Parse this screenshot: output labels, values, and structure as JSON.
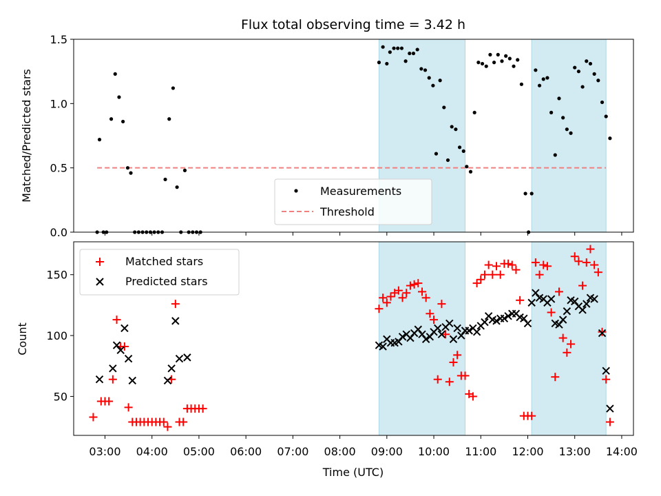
{
  "chart_data": [
    {
      "type": "scatter",
      "title": "Flux total observing time = 3.42 h",
      "xlabel": "",
      "ylabel": "Matched/Predicted stars",
      "ylim": [
        0,
        1.5
      ],
      "yticks": [
        "0.0",
        "0.5",
        "1.0",
        "1.5"
      ],
      "shaded_intervals": [
        [
          "08:50",
          "10:40"
        ],
        [
          "12:05",
          "13:40"
        ]
      ],
      "shade_color": "#add8e6",
      "legend_position": "lower-center",
      "legend": [
        {
          "label": "Measurements",
          "marker": "dot",
          "color": "#000000"
        },
        {
          "label": "Threshold",
          "marker": "dashed-line",
          "color": "#f08080"
        }
      ],
      "threshold": {
        "value": 0.5,
        "x_start": "02:50",
        "x_end": "13:40"
      },
      "series": [
        {
          "name": "Measurements",
          "color": "#000000",
          "points": [
            [
              "02:50",
              0.0
            ],
            [
              "02:53",
              0.72
            ],
            [
              "02:58",
              0.0
            ],
            [
              "03:02",
              0.0
            ],
            [
              "03:08",
              0.88
            ],
            [
              "03:13",
              1.23
            ],
            [
              "03:18",
              1.05
            ],
            [
              "03:23",
              0.86
            ],
            [
              "03:29",
              0.5
            ],
            [
              "03:33",
              0.46
            ],
            [
              "03:38",
              0.0
            ],
            [
              "03:43",
              0.0
            ],
            [
              "03:48",
              0.0
            ],
            [
              "03:53",
              0.0
            ],
            [
              "03:58",
              0.0
            ],
            [
              "04:03",
              0.0
            ],
            [
              "04:08",
              0.0
            ],
            [
              "04:13",
              0.0
            ],
            [
              "04:17",
              0.41
            ],
            [
              "04:22",
              0.88
            ],
            [
              "04:27",
              1.12
            ],
            [
              "04:32",
              0.35
            ],
            [
              "04:37",
              0.0
            ],
            [
              "04:42",
              0.48
            ],
            [
              "04:47",
              0.0
            ],
            [
              "04:52",
              0.0
            ],
            [
              "04:57",
              0.0
            ],
            [
              "05:02",
              0.0
            ],
            [
              "08:50",
              1.32
            ],
            [
              "08:55",
              1.44
            ],
            [
              "09:00",
              1.31
            ],
            [
              "09:04",
              1.4
            ],
            [
              "09:09",
              1.43
            ],
            [
              "09:14",
              1.43
            ],
            [
              "09:19",
              1.43
            ],
            [
              "09:24",
              1.33
            ],
            [
              "09:29",
              1.39
            ],
            [
              "09:34",
              1.39
            ],
            [
              "09:39",
              1.42
            ],
            [
              "09:44",
              1.27
            ],
            [
              "09:49",
              1.26
            ],
            [
              "09:54",
              1.2
            ],
            [
              "09:59",
              1.14
            ],
            [
              "10:03",
              0.61
            ],
            [
              "10:08",
              1.18
            ],
            [
              "10:13",
              0.97
            ],
            [
              "10:18",
              0.56
            ],
            [
              "10:23",
              0.82
            ],
            [
              "10:28",
              0.8
            ],
            [
              "10:33",
              0.66
            ],
            [
              "10:38",
              0.63
            ],
            [
              "10:42",
              0.51
            ],
            [
              "10:47",
              0.47
            ],
            [
              "10:52",
              0.93
            ],
            [
              "10:57",
              1.32
            ],
            [
              "11:02",
              1.31
            ],
            [
              "11:07",
              1.29
            ],
            [
              "11:12",
              1.38
            ],
            [
              "11:17",
              1.32
            ],
            [
              "11:22",
              1.38
            ],
            [
              "11:27",
              1.33
            ],
            [
              "11:32",
              1.37
            ],
            [
              "11:37",
              1.35
            ],
            [
              "11:42",
              1.29
            ],
            [
              "11:47",
              1.34
            ],
            [
              "11:52",
              1.15
            ],
            [
              "11:57",
              0.3
            ],
            [
              "12:01",
              0.0
            ],
            [
              "12:05",
              0.3
            ],
            [
              "12:10",
              1.26
            ],
            [
              "12:15",
              1.14
            ],
            [
              "12:20",
              1.19
            ],
            [
              "12:25",
              1.2
            ],
            [
              "12:30",
              0.93
            ],
            [
              "12:35",
              0.6
            ],
            [
              "12:40",
              1.04
            ],
            [
              "12:45",
              0.89
            ],
            [
              "12:50",
              0.8
            ],
            [
              "12:55",
              0.77
            ],
            [
              "13:00",
              1.28
            ],
            [
              "13:05",
              1.25
            ],
            [
              "13:10",
              1.13
            ],
            [
              "13:15",
              1.33
            ],
            [
              "13:20",
              1.31
            ],
            [
              "13:25",
              1.23
            ],
            [
              "13:30",
              1.18
            ],
            [
              "13:35",
              1.01
            ],
            [
              "13:40",
              0.9
            ],
            [
              "13:45",
              0.73
            ]
          ]
        }
      ]
    },
    {
      "type": "scatter",
      "title": "",
      "xlabel": "Time (UTC)",
      "ylabel": "Count",
      "ylim": [
        18,
        177
      ],
      "yticks": [
        "50",
        "100",
        "150"
      ],
      "xticks": [
        "03:00",
        "04:00",
        "05:00",
        "06:00",
        "07:00",
        "08:00",
        "09:00",
        "10:00",
        "11:00",
        "12:00",
        "13:00",
        "14:00"
      ],
      "shaded_intervals": [
        [
          "08:50",
          "10:40"
        ],
        [
          "12:05",
          "13:40"
        ]
      ],
      "shade_color": "#add8e6",
      "legend_position": "top-left",
      "legend": [
        {
          "label": "Matched stars",
          "marker": "plus",
          "color": "#ff0000"
        },
        {
          "label": "Predicted stars",
          "marker": "x",
          "color": "#000000"
        }
      ],
      "series": [
        {
          "name": "Matched stars",
          "color": "#ff0000",
          "marker": "plus",
          "points": [
            [
              "02:45",
              33
            ],
            [
              "02:55",
              46
            ],
            [
              "03:00",
              46
            ],
            [
              "03:05",
              46
            ],
            [
              "03:10",
              64
            ],
            [
              "03:15",
              113
            ],
            [
              "03:20",
              91
            ],
            [
              "03:25",
              91
            ],
            [
              "03:30",
              41
            ],
            [
              "03:35",
              29
            ],
            [
              "03:40",
              29
            ],
            [
              "03:45",
              29
            ],
            [
              "03:50",
              29
            ],
            [
              "03:55",
              29
            ],
            [
              "04:00",
              29
            ],
            [
              "04:05",
              29
            ],
            [
              "04:10",
              29
            ],
            [
              "04:15",
              29
            ],
            [
              "04:20",
              25
            ],
            [
              "04:25",
              64
            ],
            [
              "04:30",
              126
            ],
            [
              "04:35",
              29
            ],
            [
              "04:40",
              29
            ],
            [
              "04:45",
              40
            ],
            [
              "04:50",
              40
            ],
            [
              "04:55",
              40
            ],
            [
              "05:00",
              40
            ],
            [
              "05:05",
              40
            ],
            [
              "08:50",
              122
            ],
            [
              "08:55",
              131
            ],
            [
              "09:00",
              127
            ],
            [
              "09:05",
              132
            ],
            [
              "09:10",
              135
            ],
            [
              "09:15",
              137
            ],
            [
              "09:20",
              131
            ],
            [
              "09:25",
              135
            ],
            [
              "09:30",
              141
            ],
            [
              "09:35",
              142
            ],
            [
              "09:40",
              143
            ],
            [
              "09:45",
              136
            ],
            [
              "09:50",
              131
            ],
            [
              "09:55",
              118
            ],
            [
              "10:00",
              113
            ],
            [
              "10:05",
              64
            ],
            [
              "10:10",
              126
            ],
            [
              "10:15",
              101
            ],
            [
              "10:20",
              62
            ],
            [
              "10:25",
              78
            ],
            [
              "10:30",
              84
            ],
            [
              "10:35",
              67
            ],
            [
              "10:40",
              67
            ],
            [
              "10:45",
              52
            ],
            [
              "10:50",
              50
            ],
            [
              "10:55",
              143
            ],
            [
              "11:00",
              146
            ],
            [
              "11:05",
              150
            ],
            [
              "11:10",
              158
            ],
            [
              "11:15",
              150
            ],
            [
              "11:20",
              157
            ],
            [
              "11:25",
              150
            ],
            [
              "11:30",
              159
            ],
            [
              "11:35",
              159
            ],
            [
              "11:40",
              158
            ],
            [
              "11:45",
              154
            ],
            [
              "11:50",
              129
            ],
            [
              "11:55",
              34
            ],
            [
              "12:00",
              34
            ],
            [
              "12:05",
              34
            ],
            [
              "12:10",
              160
            ],
            [
              "12:15",
              150
            ],
            [
              "12:20",
              158
            ],
            [
              "12:25",
              157
            ],
            [
              "12:30",
              119
            ],
            [
              "12:35",
              66
            ],
            [
              "12:40",
              136
            ],
            [
              "12:45",
              98
            ],
            [
              "12:50",
              86
            ],
            [
              "12:55",
              93
            ],
            [
              "13:00",
              165
            ],
            [
              "13:05",
              161
            ],
            [
              "13:10",
              141
            ],
            [
              "13:15",
              160
            ],
            [
              "13:20",
              171
            ],
            [
              "13:25",
              158
            ],
            [
              "13:30",
              152
            ],
            [
              "13:35",
              103
            ],
            [
              "13:40",
              64
            ],
            [
              "13:45",
              29
            ]
          ]
        },
        {
          "name": "Predicted stars",
          "color": "#000000",
          "marker": "x",
          "points": [
            [
              "02:53",
              64
            ],
            [
              "03:10",
              73
            ],
            [
              "03:15",
              92
            ],
            [
              "03:20",
              88
            ],
            [
              "03:25",
              106
            ],
            [
              "03:30",
              81
            ],
            [
              "03:35",
              63
            ],
            [
              "04:20",
              63
            ],
            [
              "04:25",
              73
            ],
            [
              "04:30",
              112
            ],
            [
              "04:35",
              81
            ],
            [
              "04:45",
              82
            ],
            [
              "08:50",
              92
            ],
            [
              "08:55",
              91
            ],
            [
              "09:00",
              97
            ],
            [
              "09:05",
              94
            ],
            [
              "09:10",
              94
            ],
            [
              "09:15",
              95
            ],
            [
              "09:20",
              99
            ],
            [
              "09:25",
              101
            ],
            [
              "09:30",
              98
            ],
            [
              "09:35",
              102
            ],
            [
              "09:40",
              105
            ],
            [
              "09:45",
              101
            ],
            [
              "09:50",
              97
            ],
            [
              "09:55",
              99
            ],
            [
              "10:00",
              103
            ],
            [
              "10:05",
              106
            ],
            [
              "10:10",
              101
            ],
            [
              "10:15",
              107
            ],
            [
              "10:20",
              110
            ],
            [
              "10:25",
              97
            ],
            [
              "10:30",
              106
            ],
            [
              "10:35",
              100
            ],
            [
              "10:40",
              104
            ],
            [
              "10:45",
              104
            ],
            [
              "10:50",
              106
            ],
            [
              "10:55",
              103
            ],
            [
              "11:00",
              108
            ],
            [
              "11:05",
              111
            ],
            [
              "11:10",
              116
            ],
            [
              "11:15",
              113
            ],
            [
              "11:20",
              112
            ],
            [
              "11:25",
              114
            ],
            [
              "11:30",
              114
            ],
            [
              "11:35",
              116
            ],
            [
              "11:40",
              118
            ],
            [
              "11:45",
              118
            ],
            [
              "11:50",
              115
            ],
            [
              "11:55",
              114
            ],
            [
              "12:00",
              110
            ],
            [
              "12:05",
              127
            ],
            [
              "12:10",
              135
            ],
            [
              "12:15",
              131
            ],
            [
              "12:20",
              130
            ],
            [
              "12:25",
              127
            ],
            [
              "12:30",
              130
            ],
            [
              "12:35",
              110
            ],
            [
              "12:40",
              109
            ],
            [
              "12:45",
              113
            ],
            [
              "12:50",
              120
            ],
            [
              "12:55",
              129
            ],
            [
              "13:00",
              128
            ],
            [
              "13:05",
              124
            ],
            [
              "13:10",
              121
            ],
            [
              "13:15",
              126
            ],
            [
              "13:20",
              131
            ],
            [
              "13:25",
              130
            ],
            [
              "13:35",
              102
            ],
            [
              "13:40",
              71
            ],
            [
              "13:45",
              40
            ]
          ]
        }
      ]
    }
  ]
}
